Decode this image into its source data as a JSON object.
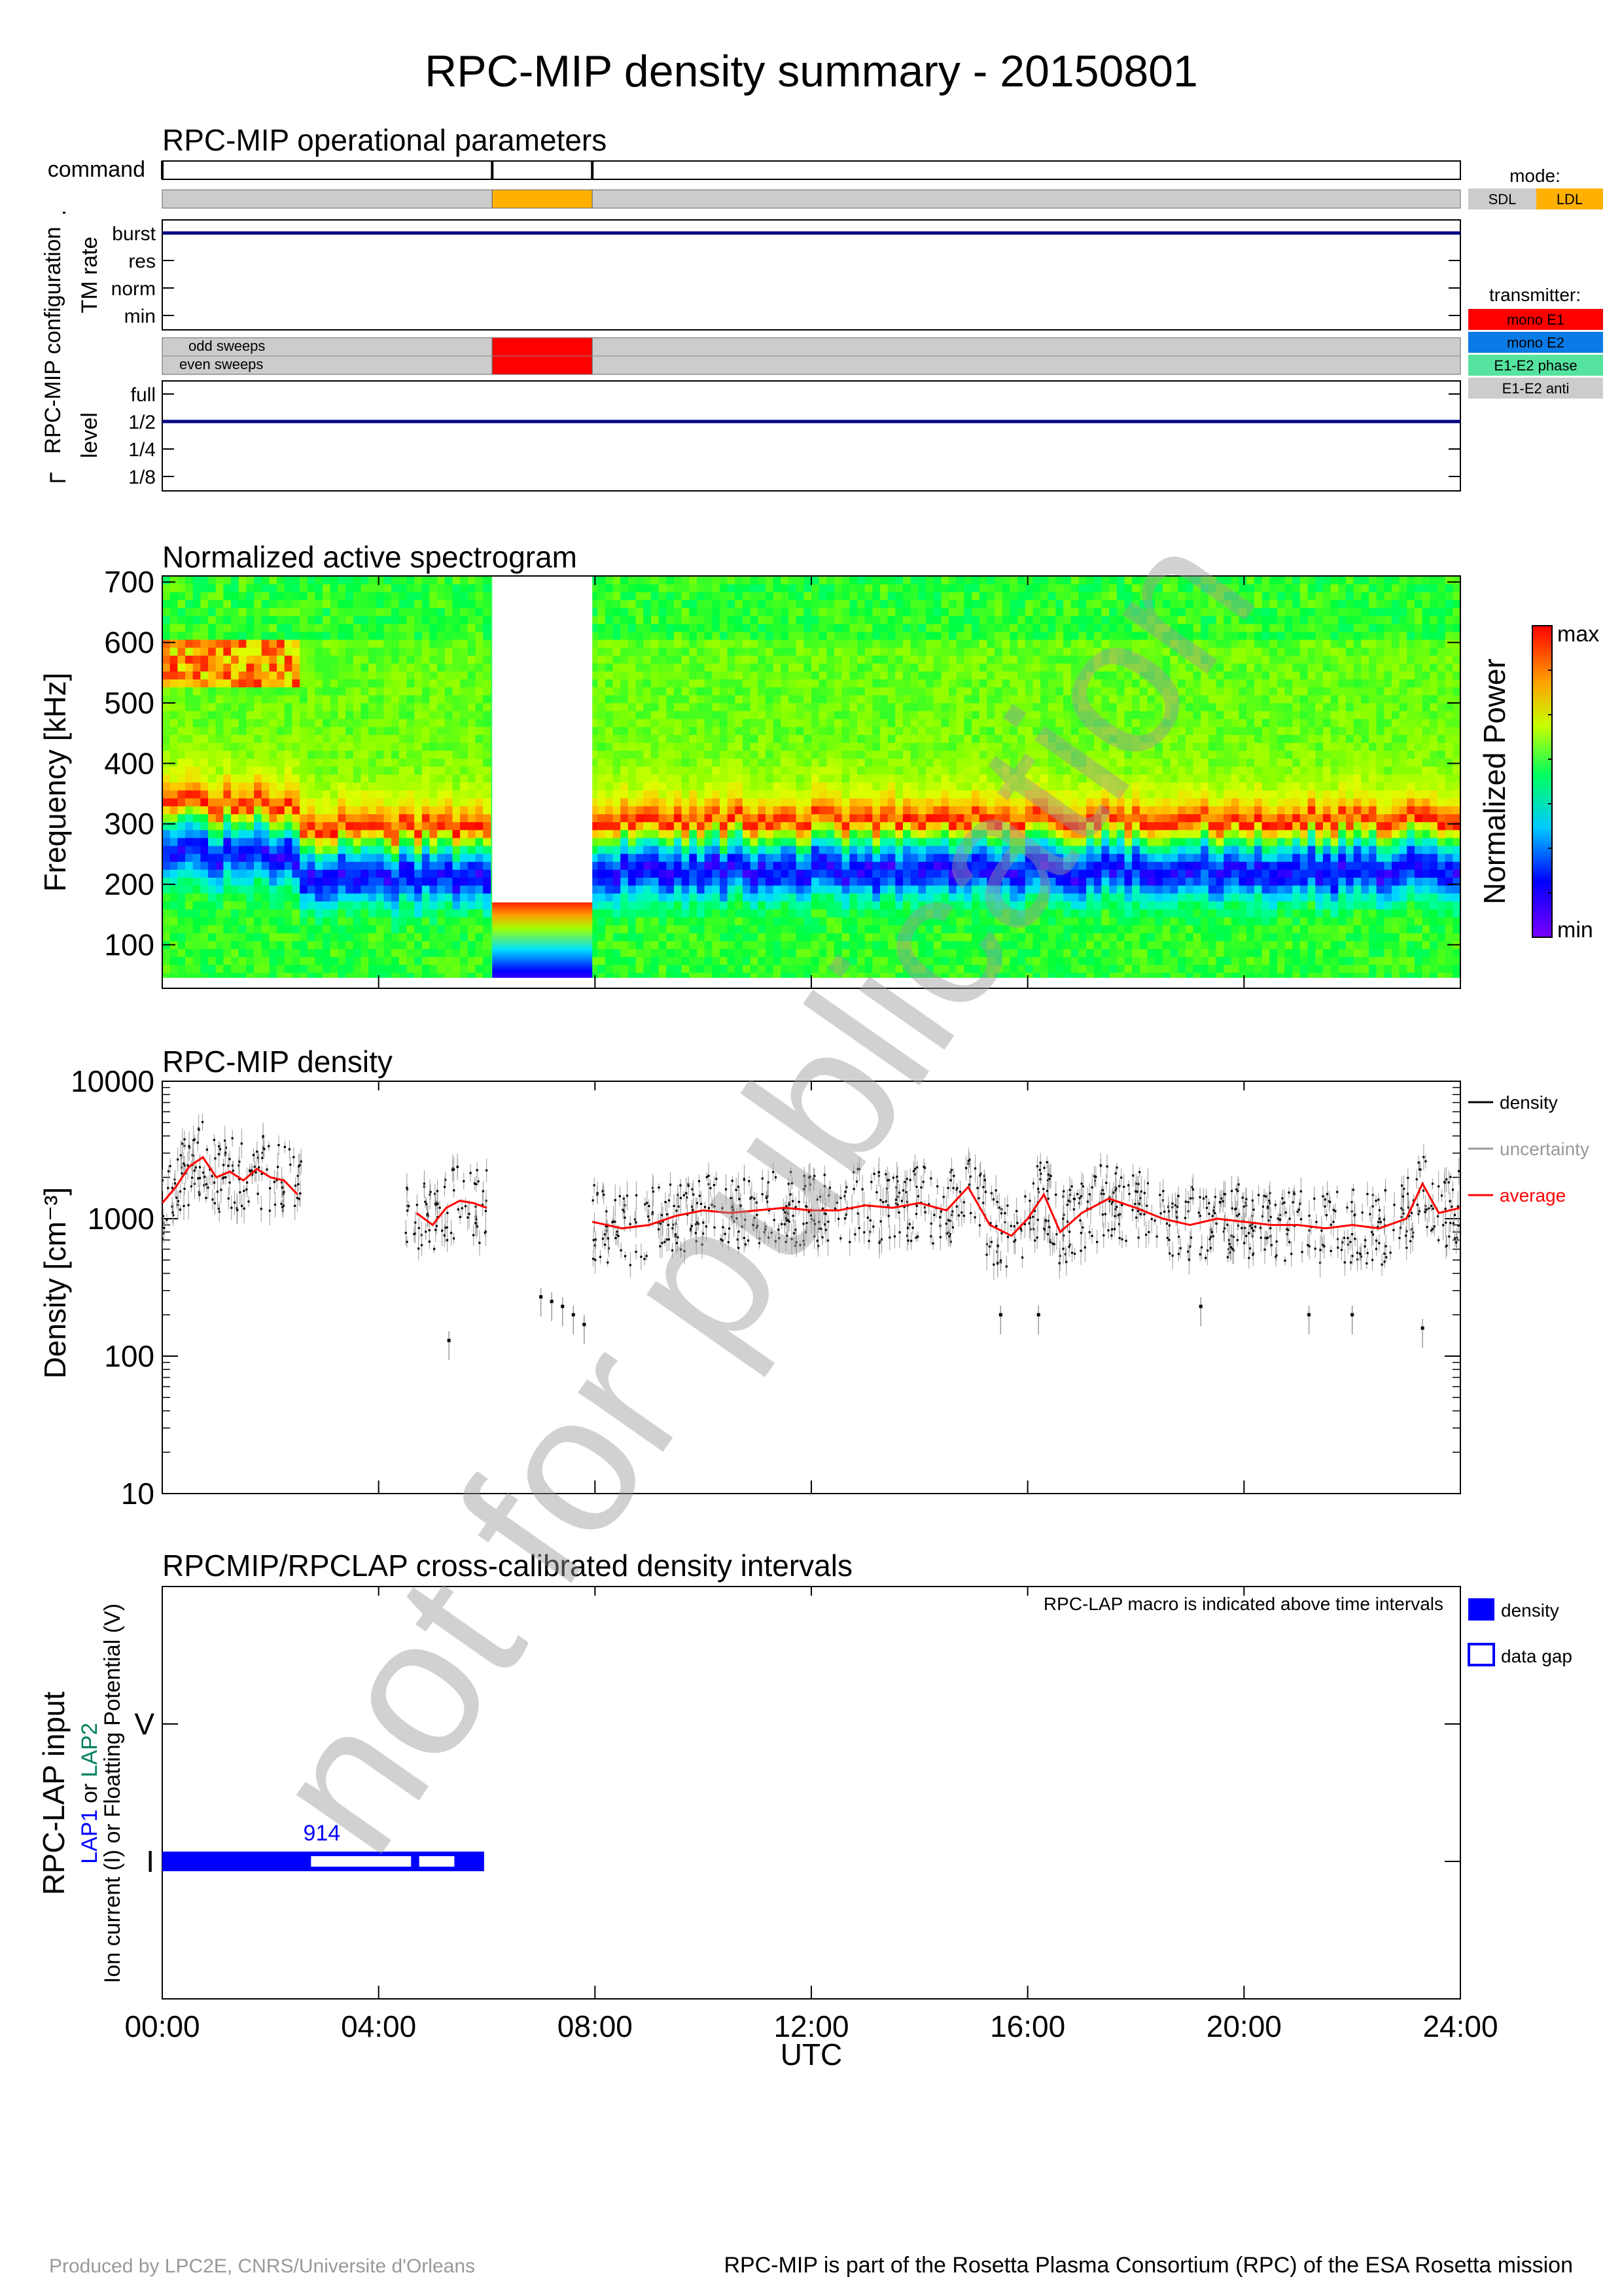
{
  "title": "RPC-MIP density summary - 20150801",
  "watermark": "not for publication",
  "footer": {
    "left": "Produced by LPC2E, CNRS/Universite d'Orleans",
    "right": "RPC-MIP is part of the Rosetta Plasma Consortium (RPC) of the ESA Rosetta mission"
  },
  "x_axis": {
    "label": "UTC",
    "ticks": [
      "00:00",
      "04:00",
      "08:00",
      "12:00",
      "16:00",
      "20:00",
      "24:00"
    ],
    "range_hours": [
      0,
      24
    ]
  },
  "colors": {
    "sdl": "#cccccc",
    "ldl": "#ffb000",
    "mono_e1": "#ff0000",
    "mono_e2": "#0a7ae6",
    "e1e2_phase": "#55e3a0",
    "e1e2_anti": "#cccccc",
    "dark_blue": "#000080",
    "density": "#000000",
    "uncertainty": "#999999",
    "average": "#ff0000",
    "lap_density": "#0000ff"
  },
  "operational": {
    "title": "RPC-MIP operational parameters",
    "command_label": "command",
    "command_marks_hours": [
      0,
      6.1,
      7.95
    ],
    "mode_bar": [
      {
        "start": 0,
        "end": 6.1,
        "mode": "SDL"
      },
      {
        "start": 6.1,
        "end": 7.95,
        "mode": "LDL"
      },
      {
        "start": 7.95,
        "end": 24,
        "mode": "SDL"
      }
    ],
    "config_label": "RPC-MIP configuration",
    "tm_rate": {
      "label": "TM rate",
      "levels": [
        "burst",
        "res",
        "norm",
        "min"
      ],
      "value": "burst"
    },
    "sweeps": {
      "odd_label": "odd sweeps",
      "even_label": "even sweeps",
      "segments": [
        {
          "start": 0,
          "end": 6.1,
          "transmitter": "E1-E2 anti"
        },
        {
          "start": 6.1,
          "end": 7.95,
          "transmitter": "mono E1"
        },
        {
          "start": 7.95,
          "end": 24,
          "transmitter": "E1-E2 anti"
        }
      ]
    },
    "level": {
      "label": "level",
      "levels": [
        "full",
        "1/2",
        "1/4",
        "1/8"
      ],
      "value": "1/2"
    },
    "mode_legend": {
      "title": "mode:",
      "items": [
        "SDL",
        "LDL"
      ]
    },
    "transmitter_legend": {
      "title": "transmitter:",
      "items": [
        "mono E1",
        "mono E2",
        "E1-E2 phase",
        "E1-E2 anti"
      ]
    }
  },
  "spectrogram": {
    "title": "Normalized active spectrogram",
    "ylabel": "Frequency [kHz]",
    "yticks": [
      "100",
      "200",
      "300",
      "400",
      "500",
      "600",
      "700"
    ],
    "ylim": [
      28,
      710
    ],
    "colorbar_label": "Normalized Power",
    "colorbar_max": "max",
    "colorbar_min": "min",
    "ldl_interval_hours": [
      6.1,
      7.95
    ],
    "ldl_max_freq": 170,
    "resonance_band_khz": [
      {
        "start": 0,
        "end": 2.6,
        "center": 330
      },
      {
        "start": 2.6,
        "end": 6.1,
        "center": 290
      },
      {
        "start": 7.95,
        "end": 24,
        "center": 305
      }
    ]
  },
  "density": {
    "title": "RPC-MIP density",
    "ylabel": "Density [cm⁻³]",
    "yticks": [
      "10",
      "100",
      "1000",
      "10000"
    ],
    "ylim": [
      10,
      10000
    ],
    "scale": "log",
    "legend": [
      "density",
      "uncertainty",
      "average"
    ]
  },
  "chart_data": {
    "type": "scatter",
    "title": "RPC-MIP density",
    "xlabel": "UTC",
    "ylabel": "Density [cm⁻³]",
    "xlim_hours": [
      0,
      24
    ],
    "ylim": [
      10,
      10000
    ],
    "yscale": "log",
    "series": [
      {
        "name": "average",
        "x_hours": [
          0.0,
          0.25,
          0.5,
          0.75,
          1.0,
          1.25,
          1.5,
          1.75,
          2.0,
          2.25,
          2.5,
          4.7,
          5.0,
          5.25,
          5.5,
          5.75,
          6.0,
          7.95,
          8.5,
          9.0,
          9.5,
          10.0,
          10.5,
          11.0,
          11.5,
          12.0,
          12.5,
          13.0,
          13.5,
          14.0,
          14.5,
          14.9,
          15.3,
          15.7,
          16.0,
          16.3,
          16.6,
          17.0,
          17.5,
          18.0,
          18.5,
          19.0,
          19.5,
          20.0,
          20.5,
          21.0,
          21.5,
          22.0,
          22.5,
          23.0,
          23.3,
          23.6,
          24.0
        ],
        "y": [
          1300,
          1700,
          2400,
          2800,
          2000,
          2200,
          1900,
          2300,
          2000,
          1900,
          1500,
          1100,
          900,
          1200,
          1350,
          1300,
          1200,
          950,
          850,
          900,
          1050,
          1150,
          1100,
          1150,
          1200,
          1150,
          1150,
          1250,
          1200,
          1300,
          1150,
          1700,
          900,
          750,
          1000,
          1500,
          800,
          1100,
          1400,
          1200,
          1000,
          900,
          1000,
          950,
          900,
          900,
          850,
          900,
          850,
          1000,
          1800,
          1100,
          1200
        ]
      },
      {
        "name": "density",
        "x_hours": [
          5.3,
          7.0,
          7.2,
          7.4,
          7.6,
          7.8,
          15.5,
          16.2,
          19.2,
          21.2,
          22.0,
          23.3
        ],
        "y": [
          130,
          270,
          250,
          230,
          200,
          170,
          200,
          200,
          230,
          200,
          200,
          160
        ]
      }
    ]
  },
  "lap": {
    "title": "RPCMIP/RPCLAP cross-calibrated density intervals",
    "ylabel": "RPC-LAP input",
    "sublabel_part1": "LAP1",
    "sublabel_or1": " or ",
    "sublabel_part2": "LAP2",
    "sublabel2": "Ion current (I) or Floatting Potential (V)",
    "ytick_V": "V",
    "ytick_I": "I",
    "note": "RPC-LAP macro is indicated above time intervals",
    "macro_label": "914",
    "macro_at_hours": 2.95,
    "density_interval_hours": [
      0,
      5.95
    ],
    "gap_intervals_hours": [
      [
        2.75,
        4.6
      ],
      [
        4.75,
        5.4
      ]
    ],
    "legend": [
      "density",
      "data gap"
    ]
  }
}
